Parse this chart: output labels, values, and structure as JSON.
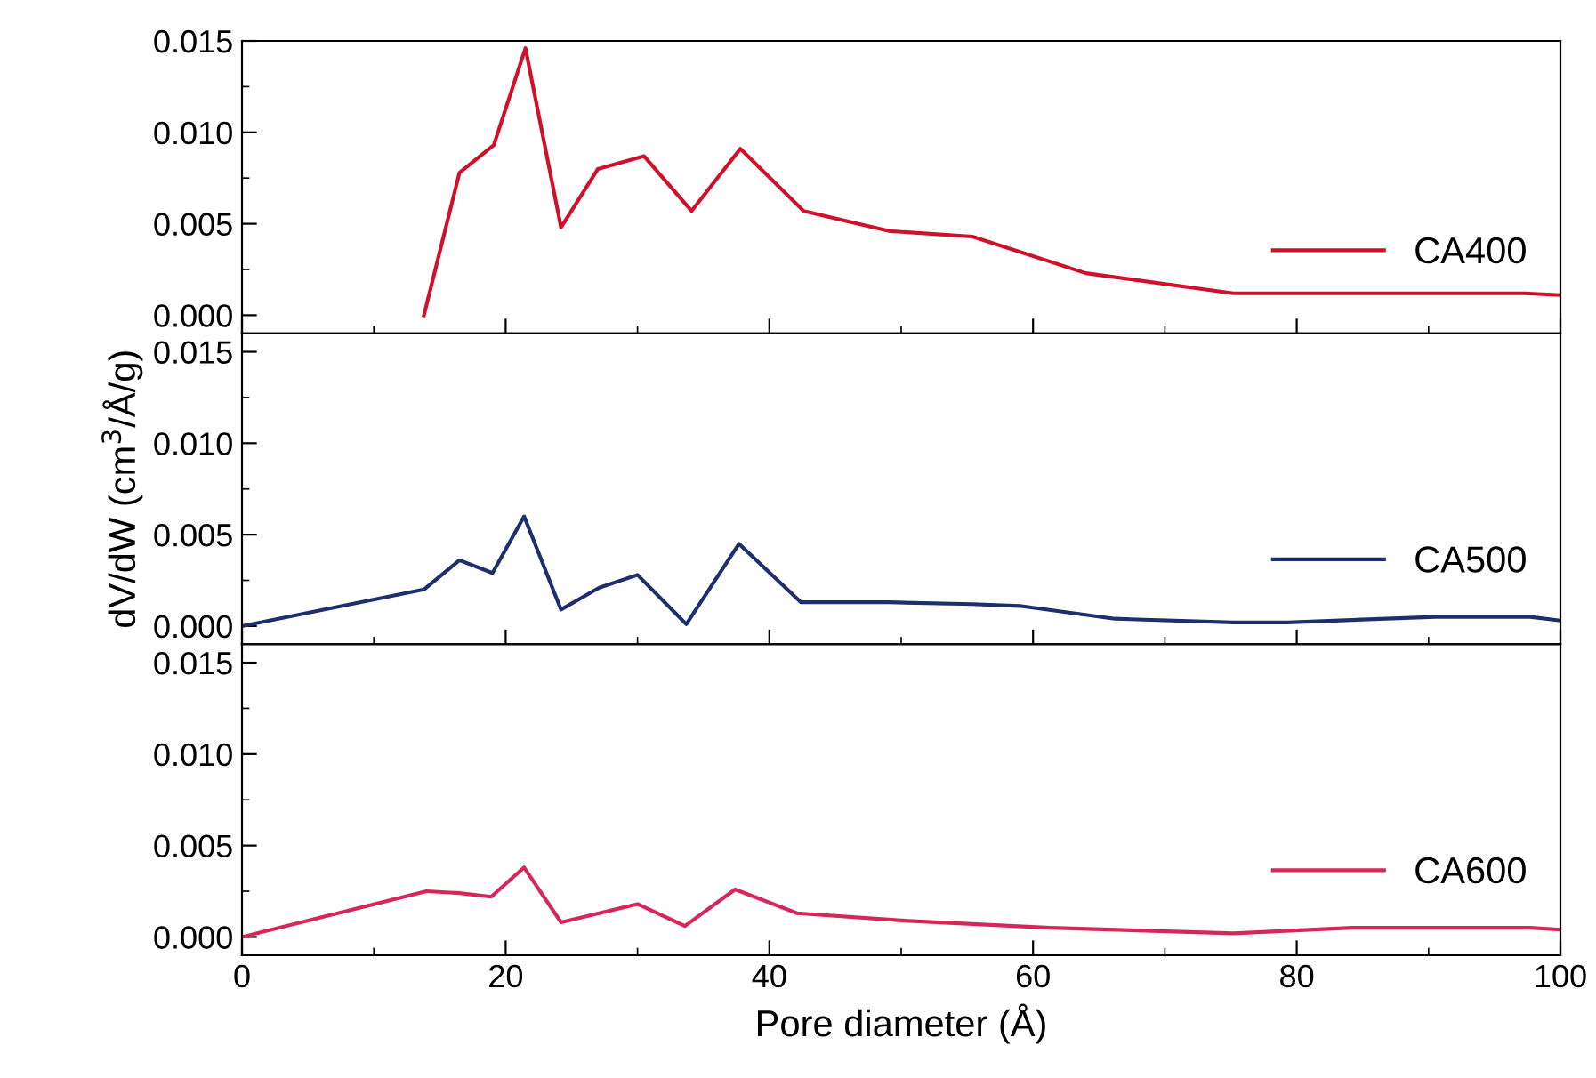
{
  "chart_data": [
    {
      "type": "line",
      "x": [
        13.8,
        16.5,
        19.1,
        21.5,
        24.2,
        27.0,
        30.5,
        34.1,
        37.8,
        42.6,
        49.1,
        55.4,
        64.0,
        75.2,
        97.3,
        100
      ],
      "series": [
        {
          "name": "CA400",
          "color": "#d0112b",
          "values": [
            0.0,
            0.0078,
            0.0093,
            0.0146,
            0.0048,
            0.008,
            0.0087,
            0.0057,
            0.0091,
            0.0057,
            0.0046,
            0.0043,
            0.0023,
            0.0012,
            0.0012,
            0.0011
          ]
        }
      ],
      "xlim": [
        0,
        100
      ],
      "xticks": [
        0,
        20,
        40,
        60,
        80,
        100
      ],
      "ylim": [
        -0.001,
        0.015
      ],
      "yticks": [
        {
          "value": 0,
          "label": "0.000"
        },
        {
          "value": 0.005,
          "label": "0.005"
        },
        {
          "value": 0.01,
          "label": "0.010"
        },
        {
          "value": 0.015,
          "label": "0.015"
        }
      ],
      "tick_labels": "y",
      "legend": "bottom right",
      "grid": false,
      "marker": "none",
      "line_style": "solid"
    },
    {
      "type": "line",
      "x": [
        0,
        13.8,
        16.5,
        19.0,
        21.4,
        24.2,
        27.1,
        30.0,
        33.7,
        37.7,
        42.4,
        49.1,
        55.4,
        59.0,
        66.2,
        75.2,
        79.3,
        90.5,
        97.7,
        100
      ],
      "series": [
        {
          "name": "CA500",
          "color": "#1f2f6b",
          "values": [
            0.0,
            0.002,
            0.0036,
            0.0029,
            0.006,
            0.0009,
            0.0021,
            0.0028,
            0.0001,
            0.0045,
            0.0013,
            0.0013,
            0.0012,
            0.0011,
            0.0004,
            0.0002,
            0.0002,
            0.0005,
            0.0005,
            0.0003
          ]
        }
      ],
      "xlim": [
        0,
        100
      ],
      "xticks": [
        0,
        20,
        40,
        60,
        80,
        100
      ],
      "ylim": [
        -0.001,
        0.016
      ],
      "yticks": [
        {
          "value": 0,
          "label": "0.000"
        },
        {
          "value": 0.005,
          "label": "0.005"
        },
        {
          "value": 0.01,
          "label": "0.010"
        },
        {
          "value": 0.015,
          "label": "0.015"
        }
      ],
      "ylabel": "dV/dW (cm$^{3}$/Å/g)",
      "tick_labels": "y",
      "legend": "bottom right",
      "grid": false,
      "marker": "none",
      "line_style": "solid"
    },
    {
      "type": "line",
      "x": [
        0,
        14.0,
        16.5,
        18.9,
        21.4,
        24.2,
        30.0,
        33.6,
        37.4,
        42.1,
        50.0,
        61.3,
        75.2,
        84.2,
        97.7,
        100
      ],
      "series": [
        {
          "name": "CA600",
          "color": "#d4285a",
          "values": [
            0.0,
            0.0025,
            0.0024,
            0.0022,
            0.0038,
            0.0008,
            0.0018,
            0.0006,
            0.0026,
            0.0013,
            0.0009,
            0.0005,
            0.0002,
            0.0005,
            0.0005,
            0.0004
          ]
        }
      ],
      "xlim": [
        0,
        100
      ],
      "xticks": [
        0,
        20,
        40,
        60,
        80,
        100
      ],
      "ylim": [
        -0.001,
        0.016
      ],
      "yticks": [
        {
          "value": 0,
          "label": "0.000"
        },
        {
          "value": 0.005,
          "label": "0.005"
        },
        {
          "value": 0.01,
          "label": "0.010"
        },
        {
          "value": 0.015,
          "label": "0.015"
        }
      ],
      "xlabel": "Pore diameter (Å)",
      "legend": "bottom right",
      "grid": false,
      "marker": "none",
      "line_style": "solid"
    }
  ]
}
